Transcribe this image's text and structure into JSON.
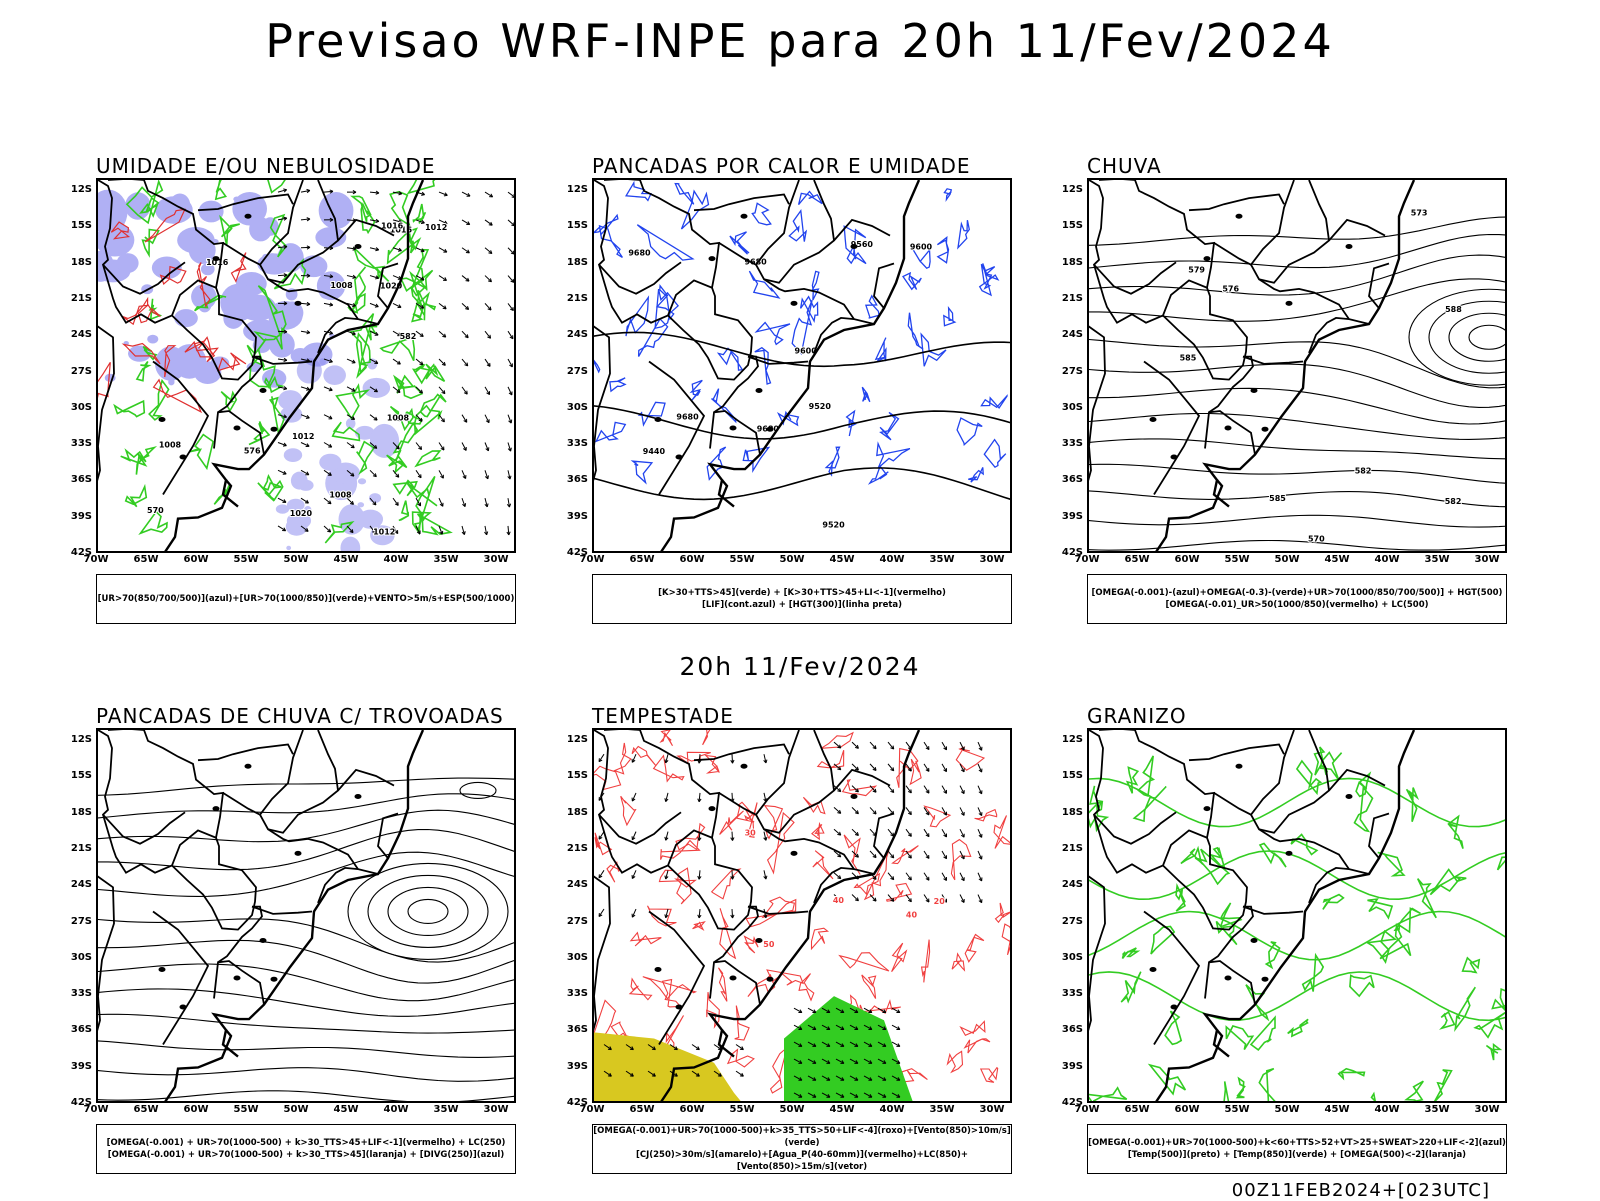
{
  "main_title": "Previsao WRF-INPE  para 20h 11/Fev/2024",
  "mid_title": "20h 11/Fev/2024",
  "footer": "00Z11FEB2024+[023UTC]",
  "axes": {
    "lat_labels": [
      "12S",
      "15S",
      "18S",
      "21S",
      "24S",
      "27S",
      "30S",
      "33S",
      "36S",
      "39S",
      "42S"
    ],
    "lon_labels": [
      "70W",
      "65W",
      "60W",
      "55W",
      "50W",
      "45W",
      "40W",
      "35W",
      "30W"
    ]
  },
  "colors": {
    "blue_shade": "#8f8ff0",
    "green_contour": "#33cc22",
    "red_shade": "#f04040",
    "dark_teal": "#2a6a60",
    "blue_contour": "#2244ee",
    "yellow": "#d8c820",
    "orange": "#f08020"
  },
  "panels": [
    {
      "title": "UMIDADE E/OU NEBULOSIDADE",
      "legend": [
        "[UR>70(850/700/500)](azul)+[UR>70(1000/850)](verde)+VENTO>5m/s+ESP(500/1000)"
      ],
      "contour_labels": [
        "1016",
        "1016",
        "1012",
        "1008",
        "1020",
        "1020",
        "1016",
        "1012",
        "1008",
        "1008",
        "1012",
        "1008",
        "570",
        "576",
        "582"
      ]
    },
    {
      "title": "PANCADAS POR CALOR E UMIDADE",
      "legend": [
        "[K>30+TTS>45](verde) + [K>30+TTS>45+LI<-1](vermelho)",
        "[LIF](cont.azul) + [HGT(300)](linha preta)"
      ],
      "contour_labels": [
        "9680",
        "9680",
        "9680",
        "9600",
        "9680",
        "9560",
        "9600",
        "9440",
        "9520",
        "9520"
      ]
    },
    {
      "title": "CHUVA",
      "legend": [
        "[OMEGA(-0.001)-(azul)+OMEGA(-0.3)-(verde)+UR>70(1000/850/700/500)] + HGT(500)",
        "[OMEGA(-0.01)_UR>50(1000/850)(vermelho) + LC(500)"
      ],
      "contour_labels": [
        "582",
        "585",
        "588",
        "585",
        "582",
        "579",
        "576",
        "573",
        "570"
      ]
    },
    {
      "title": "PANCADAS DE CHUVA C/ TROVOADAS",
      "legend": [
        "[OMEGA(-0.001) + UR>70(1000-500) + k>30_TTS>45+LIF<-1](vermelho) + LC(250)",
        "[OMEGA(-0.001) + UR>70(1000-500) + k>30_TTS>45](laranja) + [DIVG(250)](azul)"
      ],
      "contour_labels": []
    },
    {
      "title": "TEMPESTADE",
      "legend": [
        "[OMEGA(-0.001)+UR>70(1000-500)+k>35_TTS>50+LIF<-4](roxo)+[Vento(850)>10m/s](verde)",
        "[CJ(250)>30m/s](amarelo)+[Agua_P(40-60mm)](vermelho)+LC(850)+[Vento(850)>15m/s](vetor)"
      ],
      "contour_labels": [
        "40",
        "50",
        "40",
        "30",
        "20"
      ]
    },
    {
      "title": "GRANIZO",
      "legend": [
        "[OMEGA(-0.001)+UR>70(1000-500)+k<60+TTS>52+VT>25+SWEAT>220+LIF<-2](azul)",
        "[Temp(500)](preto) + [Temp(850)](verde) + [OMEGA(500)<-2](laranja)"
      ],
      "contour_labels": []
    }
  ]
}
